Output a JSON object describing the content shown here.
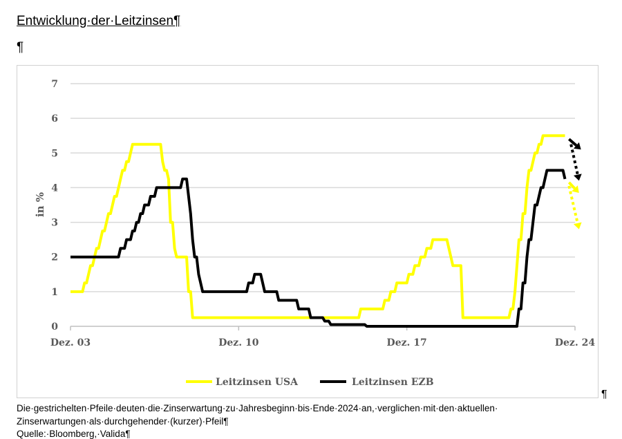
{
  "document": {
    "title": "Entwicklung·der·Leitzinsen¶",
    "empty_paragraph": "¶",
    "after_chart_mark": "¶",
    "caption_lines": [
      "Die·gestrichelten·Pfeile·deuten·die·Zinserwartung·zu·Jahresbeginn·bis·Ende·2024·an,·verglichen·mit·den·aktuellen·",
      "Zinserwartungen·als·durchgehender·(kurzer)·Pfeil¶",
      "Quelle:·Bloomberg,·Valida¶"
    ]
  },
  "chart_data": {
    "type": "line",
    "title": "",
    "xlabel": "",
    "ylabel": "in %",
    "ylim": [
      0,
      7
    ],
    "yticks": [
      "0",
      "1",
      "2",
      "3",
      "4",
      "5",
      "6",
      "7"
    ],
    "xlim": [
      "2003-12",
      "2024-12"
    ],
    "xticks": [
      {
        "date": "2003-12",
        "label": "Dez. 03"
      },
      {
        "date": "2010-12",
        "label": "Dez. 10"
      },
      {
        "date": "2017-12",
        "label": "Dez. 17"
      },
      {
        "date": "2024-12",
        "label": "Dez. 24"
      }
    ],
    "grid": true,
    "legend_position": "bottom",
    "step": true,
    "series": [
      {
        "name": "Leitzinsen USA",
        "color": "#FFFF00",
        "points": [
          [
            "2003-12",
            1.0
          ],
          [
            "2004-06",
            1.25
          ],
          [
            "2004-08",
            1.5
          ],
          [
            "2004-09",
            1.75
          ],
          [
            "2004-11",
            2.0
          ],
          [
            "2004-12",
            2.25
          ],
          [
            "2005-02",
            2.5
          ],
          [
            "2005-03",
            2.75
          ],
          [
            "2005-05",
            3.0
          ],
          [
            "2005-06",
            3.25
          ],
          [
            "2005-08",
            3.5
          ],
          [
            "2005-09",
            3.75
          ],
          [
            "2005-11",
            4.0
          ],
          [
            "2005-12",
            4.25
          ],
          [
            "2006-01",
            4.5
          ],
          [
            "2006-03",
            4.75
          ],
          [
            "2006-05",
            5.0
          ],
          [
            "2006-06",
            5.25
          ],
          [
            "2007-09",
            4.75
          ],
          [
            "2007-10",
            4.5
          ],
          [
            "2007-12",
            4.25
          ],
          [
            "2008-01",
            3.0
          ],
          [
            "2008-03",
            2.25
          ],
          [
            "2008-04",
            2.0
          ],
          [
            "2008-10",
            1.0
          ],
          [
            "2008-12",
            0.25
          ],
          [
            "2015-12",
            0.5
          ],
          [
            "2016-12",
            0.75
          ],
          [
            "2017-03",
            1.0
          ],
          [
            "2017-06",
            1.25
          ],
          [
            "2017-12",
            1.5
          ],
          [
            "2018-03",
            1.75
          ],
          [
            "2018-06",
            2.0
          ],
          [
            "2018-09",
            2.25
          ],
          [
            "2018-12",
            2.5
          ],
          [
            "2019-08",
            2.25
          ],
          [
            "2019-09",
            2.0
          ],
          [
            "2019-10",
            1.75
          ],
          [
            "2020-03",
            0.25
          ],
          [
            "2022-03",
            0.5
          ],
          [
            "2022-05",
            1.0
          ],
          [
            "2022-06",
            1.75
          ],
          [
            "2022-07",
            2.5
          ],
          [
            "2022-09",
            3.25
          ],
          [
            "2022-11",
            4.0
          ],
          [
            "2022-12",
            4.5
          ],
          [
            "2023-02",
            4.75
          ],
          [
            "2023-03",
            5.0
          ],
          [
            "2023-05",
            5.25
          ],
          [
            "2023-07",
            5.5
          ],
          [
            "2024-07",
            5.5
          ]
        ]
      },
      {
        "name": "Leitzinsen EZB",
        "color": "#000000",
        "points": [
          [
            "2003-12",
            2.0
          ],
          [
            "2005-12",
            2.25
          ],
          [
            "2006-03",
            2.5
          ],
          [
            "2006-06",
            2.75
          ],
          [
            "2006-08",
            3.0
          ],
          [
            "2006-10",
            3.25
          ],
          [
            "2006-12",
            3.5
          ],
          [
            "2007-03",
            3.75
          ],
          [
            "2007-06",
            4.0
          ],
          [
            "2008-07",
            4.25
          ],
          [
            "2008-10",
            3.75
          ],
          [
            "2008-11",
            3.25
          ],
          [
            "2008-12",
            2.5
          ],
          [
            "2009-01",
            2.0
          ],
          [
            "2009-03",
            1.5
          ],
          [
            "2009-04",
            1.25
          ],
          [
            "2009-05",
            1.0
          ],
          [
            "2011-04",
            1.25
          ],
          [
            "2011-07",
            1.5
          ],
          [
            "2011-11",
            1.25
          ],
          [
            "2011-12",
            1.0
          ],
          [
            "2012-07",
            0.75
          ],
          [
            "2013-05",
            0.5
          ],
          [
            "2013-11",
            0.25
          ],
          [
            "2014-06",
            0.15
          ],
          [
            "2014-09",
            0.05
          ],
          [
            "2016-03",
            0.0
          ],
          [
            "2022-07",
            0.5
          ],
          [
            "2022-09",
            1.25
          ],
          [
            "2022-11",
            2.0
          ],
          [
            "2022-12",
            2.5
          ],
          [
            "2023-02",
            3.0
          ],
          [
            "2023-03",
            3.5
          ],
          [
            "2023-05",
            3.75
          ],
          [
            "2023-06",
            4.0
          ],
          [
            "2023-08",
            4.25
          ],
          [
            "2023-09",
            4.5
          ],
          [
            "2024-06",
            4.25
          ],
          [
            "2024-07",
            4.25
          ]
        ]
      }
    ],
    "annotations": [
      {
        "kind": "arrow-solid",
        "series": "Leitzinsen EZB",
        "color": "#000000",
        "from": [
          "2024-09",
          5.4
        ],
        "to": [
          "2025-03",
          5.1
        ]
      },
      {
        "kind": "arrow-dotted",
        "series": "Leitzinsen EZB",
        "color": "#000000",
        "from": [
          "2024-10",
          5.25
        ],
        "to": [
          "2025-02",
          4.2
        ]
      },
      {
        "kind": "arrow-solid",
        "series": "Leitzinsen USA",
        "color": "#FFFF00",
        "from": [
          "2024-09",
          4.15
        ],
        "to": [
          "2025-02",
          3.85
        ]
      },
      {
        "kind": "arrow-dotted",
        "series": "Leitzinsen USA",
        "color": "#FFFF00",
        "from": [
          "2024-09",
          4.05
        ],
        "to": [
          "2025-02",
          2.8
        ]
      }
    ]
  }
}
